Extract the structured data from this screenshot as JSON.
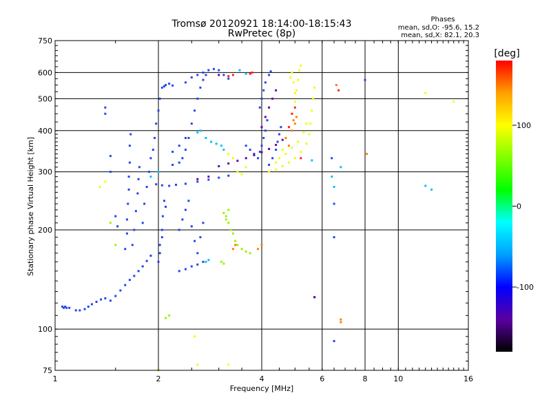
{
  "chart_data": {
    "type": "scatter",
    "title": "Tromsø 20120921 18:14:00-18:15:43",
    "subtitle": "RwPretec (8p)",
    "xlabel": "Frequency [MHz]",
    "ylabel": "Stationary phase Virtual Height [km]",
    "x_scale": "log",
    "y_scale": "log",
    "xlim": [
      1,
      16
    ],
    "ylim": [
      75,
      750
    ],
    "x_ticks": [
      1,
      2,
      4,
      6,
      8,
      10,
      16
    ],
    "y_ticks": [
      75,
      100,
      200,
      300,
      400,
      500,
      600,
      750
    ],
    "grid": true,
    "stats": {
      "heading": "Phases",
      "line_o": "mean, sd,O: -95.6, 15.2",
      "line_x": "mean, sd,X:  82.1, 20.3"
    },
    "colorbar": {
      "label": "[deg]",
      "range": [
        -180,
        180
      ],
      "ticks": [
        100,
        0,
        -100
      ],
      "colors": [
        "#000000",
        "#5a00a0",
        "#0000ff",
        "#00a0ff",
        "#00ffff",
        "#00ff00",
        "#80ff00",
        "#ffff00",
        "#ffa000",
        "#ff0000"
      ]
    },
    "series": [
      {
        "color": "#2244ee",
        "points": [
          [
            1.05,
            117
          ],
          [
            1.06,
            116
          ],
          [
            1.07,
            117
          ],
          [
            1.08,
            116
          ],
          [
            1.1,
            116
          ],
          [
            1.15,
            114
          ],
          [
            1.18,
            114
          ],
          [
            1.22,
            115
          ],
          [
            1.25,
            117
          ],
          [
            1.28,
            119
          ],
          [
            1.32,
            121
          ],
          [
            1.36,
            123
          ],
          [
            1.4,
            124
          ],
          [
            1.45,
            122
          ],
          [
            1.5,
            126
          ],
          [
            1.55,
            131
          ],
          [
            1.6,
            136
          ],
          [
            1.65,
            141
          ],
          [
            1.7,
            145
          ],
          [
            1.75,
            150
          ],
          [
            1.8,
            155
          ],
          [
            1.85,
            161
          ],
          [
            1.9,
            167
          ],
          [
            1.45,
            335
          ],
          [
            1.45,
            300
          ],
          [
            1.5,
            220
          ],
          [
            1.52,
            205
          ],
          [
            1.6,
            175
          ],
          [
            1.62,
            195
          ],
          [
            1.62,
            215
          ],
          [
            1.63,
            240
          ],
          [
            1.64,
            265
          ],
          [
            1.64,
            290
          ],
          [
            1.65,
            320
          ],
          [
            1.65,
            360
          ],
          [
            1.66,
            390
          ],
          [
            1.68,
            180
          ],
          [
            1.7,
            200
          ],
          [
            1.72,
            228
          ],
          [
            1.74,
            258
          ],
          [
            1.75,
            285
          ],
          [
            1.76,
            310
          ],
          [
            1.8,
            210
          ],
          [
            1.82,
            240
          ],
          [
            1.85,
            270
          ],
          [
            1.88,
            300
          ],
          [
            1.9,
            330
          ],
          [
            1.93,
            350
          ],
          [
            1.95,
            380
          ],
          [
            1.97,
            420
          ],
          [
            2.0,
            460
          ],
          [
            2.02,
            500
          ],
          [
            2.05,
            540
          ],
          [
            2.08,
            545
          ],
          [
            2.1,
            550
          ],
          [
            2.15,
            555
          ],
          [
            2.2,
            548
          ],
          [
            1.97,
            275
          ],
          [
            2.05,
            273
          ],
          [
            2.15,
            272
          ],
          [
            2.25,
            274
          ],
          [
            2.4,
            276
          ],
          [
            2.6,
            280
          ],
          [
            2.8,
            284
          ],
          [
            3.0,
            288
          ],
          [
            3.2,
            292
          ],
          [
            2.0,
            160
          ],
          [
            2.02,
            180
          ],
          [
            2.05,
            200
          ],
          [
            2.06,
            220
          ],
          [
            2.08,
            245
          ],
          [
            2.1,
            235
          ],
          [
            2.02,
            170
          ],
          [
            2.05,
            190
          ],
          [
            2.3,
            150
          ],
          [
            2.4,
            152
          ],
          [
            2.5,
            155
          ],
          [
            2.6,
            157
          ],
          [
            2.7,
            160
          ],
          [
            2.3,
            200
          ],
          [
            2.35,
            215
          ],
          [
            2.4,
            230
          ],
          [
            2.45,
            245
          ],
          [
            2.5,
            205
          ],
          [
            2.55,
            185
          ],
          [
            2.6,
            170
          ],
          [
            2.65,
            190
          ],
          [
            2.7,
            210
          ],
          [
            2.35,
            330
          ],
          [
            2.4,
            350
          ],
          [
            2.45,
            380
          ],
          [
            2.5,
            420
          ],
          [
            2.55,
            460
          ],
          [
            2.6,
            500
          ],
          [
            2.65,
            540
          ],
          [
            2.7,
            570
          ],
          [
            2.75,
            590
          ],
          [
            2.4,
            560
          ],
          [
            2.5,
            580
          ],
          [
            2.6,
            590
          ],
          [
            2.7,
            600
          ],
          [
            2.8,
            610
          ],
          [
            2.9,
            615
          ],
          [
            3.0,
            610
          ],
          [
            3.1,
            590
          ],
          [
            3.2,
            575
          ],
          [
            2.2,
            345
          ],
          [
            2.3,
            360
          ],
          [
            2.4,
            380
          ],
          [
            2.2,
            315
          ],
          [
            2.3,
            320
          ],
          [
            3.6,
            360
          ],
          [
            3.7,
            350
          ],
          [
            3.8,
            340
          ],
          [
            3.9,
            330
          ],
          [
            3.95,
            345
          ],
          [
            4.0,
            360
          ],
          [
            4.05,
            380
          ],
          [
            4.1,
            400
          ],
          [
            4.15,
            430
          ],
          [
            3.95,
            470
          ],
          [
            4.0,
            500
          ],
          [
            4.05,
            530
          ],
          [
            4.1,
            560
          ],
          [
            4.2,
            590
          ],
          [
            4.25,
            605
          ],
          [
            4.2,
            315
          ],
          [
            4.3,
            330
          ],
          [
            4.4,
            350
          ],
          [
            4.45,
            370
          ],
          [
            4.5,
            390
          ],
          [
            4.55,
            410
          ],
          [
            6.5,
            92
          ],
          [
            6.5,
            190
          ],
          [
            6.5,
            240
          ],
          [
            6.4,
            330
          ],
          [
            8.0,
            570
          ],
          [
            5.7,
            125
          ],
          [
            1.4,
            470
          ],
          [
            1.4,
            450
          ]
        ]
      },
      {
        "color": "#6a00a8",
        "points": [
          [
            3.0,
            312
          ],
          [
            3.2,
            318
          ],
          [
            3.4,
            324
          ],
          [
            3.6,
            330
          ],
          [
            3.8,
            337
          ],
          [
            4.0,
            344
          ],
          [
            4.2,
            352
          ],
          [
            4.4,
            362
          ],
          [
            4.6,
            375
          ],
          [
            4.0,
            410
          ],
          [
            4.1,
            440
          ],
          [
            4.2,
            470
          ],
          [
            4.3,
            500
          ],
          [
            4.4,
            530
          ],
          [
            2.6,
            285
          ],
          [
            2.8,
            290
          ],
          [
            5.7,
            125
          ],
          [
            3.0,
            590
          ]
        ]
      },
      {
        "color": "#00c0ff",
        "points": [
          [
            2.6,
            395
          ],
          [
            2.65,
            400
          ],
          [
            2.75,
            380
          ],
          [
            2.85,
            370
          ],
          [
            2.95,
            365
          ],
          [
            3.05,
            360
          ],
          [
            3.1,
            350
          ],
          [
            2.75,
            160
          ],
          [
            2.8,
            162
          ],
          [
            3.45,
            610
          ],
          [
            3.6,
            595
          ],
          [
            6.5,
            270
          ],
          [
            6.4,
            290
          ],
          [
            6.8,
            310
          ],
          [
            12.0,
            272
          ],
          [
            12.5,
            265
          ],
          [
            1.9,
            290
          ],
          [
            2.0,
            300
          ],
          [
            5.6,
            325
          ]
        ]
      },
      {
        "color": "#9ef000",
        "points": [
          [
            3.1,
            225
          ],
          [
            3.15,
            220
          ],
          [
            3.2,
            210
          ],
          [
            3.25,
            200
          ],
          [
            3.3,
            195
          ],
          [
            3.35,
            185
          ],
          [
            3.4,
            180
          ],
          [
            3.5,
            175
          ],
          [
            3.6,
            172
          ],
          [
            3.7,
            170
          ],
          [
            3.15,
            215
          ],
          [
            3.2,
            230
          ],
          [
            3.05,
            160
          ],
          [
            3.1,
            158
          ],
          [
            2.0,
            75
          ],
          [
            2.1,
            108
          ],
          [
            2.15,
            110
          ],
          [
            1.5,
            180
          ],
          [
            1.45,
            210
          ]
        ]
      },
      {
        "color": "#f0ff00",
        "points": [
          [
            4.2,
            300
          ],
          [
            4.4,
            305
          ],
          [
            4.6,
            312
          ],
          [
            4.8,
            320
          ],
          [
            5.0,
            330
          ],
          [
            5.2,
            345
          ],
          [
            5.4,
            365
          ],
          [
            5.5,
            390
          ],
          [
            5.55,
            420
          ],
          [
            5.6,
            460
          ],
          [
            5.65,
            500
          ],
          [
            5.7,
            540
          ],
          [
            4.6,
            350
          ],
          [
            4.7,
            380
          ],
          [
            4.8,
            410
          ],
          [
            4.9,
            450
          ],
          [
            5.0,
            490
          ],
          [
            5.05,
            530
          ],
          [
            5.1,
            570
          ],
          [
            5.15,
            610
          ],
          [
            5.2,
            630
          ],
          [
            4.85,
            580
          ],
          [
            4.9,
            600
          ],
          [
            4.95,
            560
          ],
          [
            5.0,
            520
          ],
          [
            3.2,
            340
          ],
          [
            3.3,
            330
          ],
          [
            3.4,
            300
          ],
          [
            3.5,
            295
          ],
          [
            3.6,
            310
          ],
          [
            4.4,
            320
          ],
          [
            4.5,
            330
          ],
          [
            4.7,
            340
          ],
          [
            4.9,
            355
          ],
          [
            5.1,
            370
          ],
          [
            5.3,
            395
          ],
          [
            5.4,
            420
          ],
          [
            2.6,
            78
          ],
          [
            3.2,
            78
          ],
          [
            12.0,
            520
          ],
          [
            14.5,
            490
          ],
          [
            1.35,
            270
          ],
          [
            1.4,
            280
          ],
          [
            2.55,
            95
          ]
        ]
      },
      {
        "color": "#ff8000",
        "points": [
          [
            4.9,
            400
          ],
          [
            5.0,
            420
          ],
          [
            5.05,
            440
          ],
          [
            4.7,
            380
          ],
          [
            4.8,
            360
          ],
          [
            4.95,
            430
          ],
          [
            6.8,
            105
          ],
          [
            6.8,
            107
          ],
          [
            8.1,
            340
          ],
          [
            6.6,
            550
          ],
          [
            3.9,
            175
          ],
          [
            4.0,
            180
          ],
          [
            3.3,
            175
          ],
          [
            3.35,
            180
          ]
        ]
      },
      {
        "color": "#ff2020",
        "points": [
          [
            6.7,
            530
          ],
          [
            5.0,
            470
          ],
          [
            4.9,
            450
          ],
          [
            4.8,
            410
          ],
          [
            3.7,
            595
          ],
          [
            3.75,
            600
          ],
          [
            3.2,
            585
          ],
          [
            3.3,
            590
          ],
          [
            5.2,
            330
          ]
        ]
      }
    ]
  }
}
